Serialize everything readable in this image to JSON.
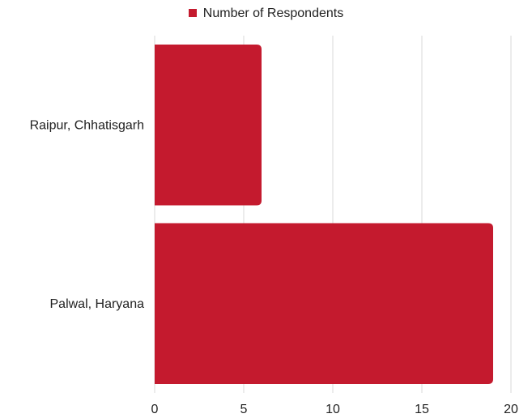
{
  "chart_data": {
    "type": "bar",
    "orientation": "horizontal",
    "categories": [
      "Raipur, Chhatisgarh",
      "Palwal, Haryana"
    ],
    "series": [
      {
        "name": "Number of Respondents",
        "values": [
          6,
          19
        ],
        "color": "#c41a2e"
      }
    ],
    "xlim": [
      0,
      20
    ],
    "xticks": [
      "0",
      "5",
      "10",
      "15",
      "20"
    ],
    "grid": true,
    "legend_position": "top-center"
  }
}
